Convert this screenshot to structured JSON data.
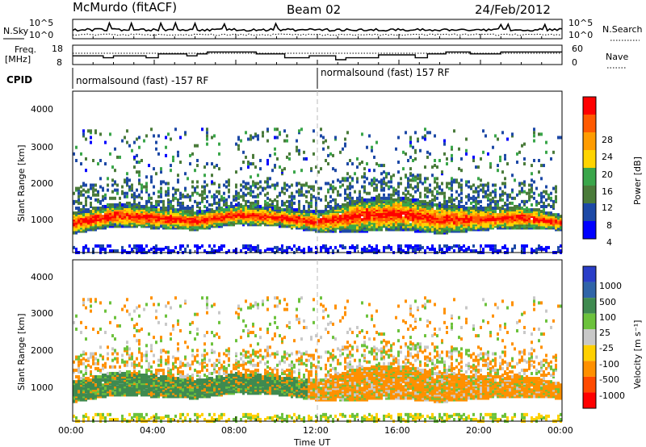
{
  "header": {
    "station": "McMurdo (fitACF)",
    "beam": "Beam 02",
    "date": "24/Feb/2012"
  },
  "noise_panel": {
    "left_label": "N.Sky",
    "right_label": "N.Search",
    "left_ticks": [
      "10^5",
      "10^0"
    ],
    "right_ticks": [
      "10^5",
      "10^0"
    ]
  },
  "freq_panel": {
    "left_label_1": "Freq.",
    "left_label_2": "[MHz]",
    "right_label": "Nave",
    "left_ticks": [
      "18",
      "8"
    ],
    "right_ticks": [
      "60",
      "0"
    ],
    "freq_steps": [
      {
        "t": 0.0,
        "f": 12.5
      },
      {
        "t": 1.5,
        "f": 11.5
      },
      {
        "t": 2.0,
        "f": 12.5
      },
      {
        "t": 3.6,
        "f": 11.5
      },
      {
        "t": 4.2,
        "f": 13.5
      },
      {
        "t": 5.6,
        "f": 12.5
      },
      {
        "t": 6.1,
        "f": 13.5
      },
      {
        "t": 6.6,
        "f": 14.5
      },
      {
        "t": 9.0,
        "f": 13.5
      },
      {
        "t": 10.4,
        "f": 11.5
      },
      {
        "t": 11.6,
        "f": 12.5
      },
      {
        "t": 12.9,
        "f": 10.5
      },
      {
        "t": 13.4,
        "f": 11.5
      },
      {
        "t": 15.0,
        "f": 13.0
      },
      {
        "t": 16.8,
        "f": 11.5
      },
      {
        "t": 17.4,
        "f": 13.5
      },
      {
        "t": 18.3,
        "f": 14.5
      },
      {
        "t": 19.5,
        "f": 13.5
      },
      {
        "t": 21.0,
        "f": 14.5
      },
      {
        "t": 24.0,
        "f": 14.5
      }
    ]
  },
  "cpid": {
    "label": "CPID",
    "segment_1": "normalsound (fast) -157 RF",
    "segment_2": "normalsound (fast) 157 RF",
    "change_time": 12.0
  },
  "power_panel": {
    "ylabel": "Slant Range [km]",
    "yticks": [
      "4000",
      "3000",
      "2000",
      "1000"
    ],
    "colorbar_label": "Power [dB]",
    "colorbar_ticks": [
      "28",
      "24",
      "20",
      "16",
      "12",
      "8",
      "4"
    ],
    "colors": [
      "#0000ff",
      "#1d49a6",
      "#4a7b3a",
      "#3aa64a",
      "#ffd400",
      "#ff9c00",
      "#ff5a00",
      "#ff0000"
    ]
  },
  "velocity_panel": {
    "ylabel": "Slant Range [km]",
    "yticks": [
      "4000",
      "3000",
      "2000",
      "1000"
    ],
    "colorbar_label": "Velocity [m s⁻¹]",
    "colorbar_ticks": [
      "1000",
      "500",
      "100",
      "25",
      "-25",
      "-100",
      "-500",
      "-1000"
    ],
    "colors": [
      "#2a3ec8",
      "#2f64a8",
      "#3f8a50",
      "#6cc23c",
      "#c8c8c8",
      "#ffd000",
      "#ff9000",
      "#ff4a00",
      "#ff0000"
    ]
  },
  "x_axis": {
    "label": "Time UT",
    "ticks": [
      "00:00",
      "04:00",
      "08:00",
      "12:00",
      "16:00",
      "20:00",
      "00:00"
    ]
  },
  "chart_data": {
    "type": "heatmap",
    "title": "McMurdo (fitACF) Beam 02 24/Feb/2012",
    "xlabel": "Time UT",
    "ylabel": "Slant Range [km]",
    "xlim": [
      "00:00",
      "24:00"
    ],
    "ylim": [
      180,
      4600
    ],
    "panels": [
      {
        "name": "Power [dB]",
        "range": [
          0,
          32
        ],
        "colorbar_ticks": [
          4,
          8,
          12,
          16,
          20,
          24,
          28
        ]
      },
      {
        "name": "Velocity [m s-1]",
        "range": [
          -1000,
          1000
        ],
        "colorbar_ticks": [
          -1000,
          -500,
          -100,
          -25,
          25,
          100,
          500,
          1000
        ]
      }
    ],
    "main_echo_band": [
      {
        "t": 0.0,
        "low": 700,
        "high": 1300
      },
      {
        "t": 2.0,
        "low": 900,
        "high": 1500
      },
      {
        "t": 4.0,
        "low": 850,
        "high": 1450
      },
      {
        "t": 6.0,
        "low": 800,
        "high": 1300
      },
      {
        "t": 8.0,
        "low": 950,
        "high": 1500
      },
      {
        "t": 10.0,
        "low": 900,
        "high": 1400
      },
      {
        "t": 12.0,
        "low": 750,
        "high": 1300
      },
      {
        "t": 14.0,
        "low": 750,
        "high": 1650
      },
      {
        "t": 16.0,
        "low": 800,
        "high": 1700
      },
      {
        "t": 18.0,
        "low": 700,
        "high": 1500
      },
      {
        "t": 20.0,
        "low": 800,
        "high": 1400
      },
      {
        "t": 22.0,
        "low": 850,
        "high": 1450
      },
      {
        "t": 24.0,
        "low": 800,
        "high": 1200
      }
    ]
  }
}
